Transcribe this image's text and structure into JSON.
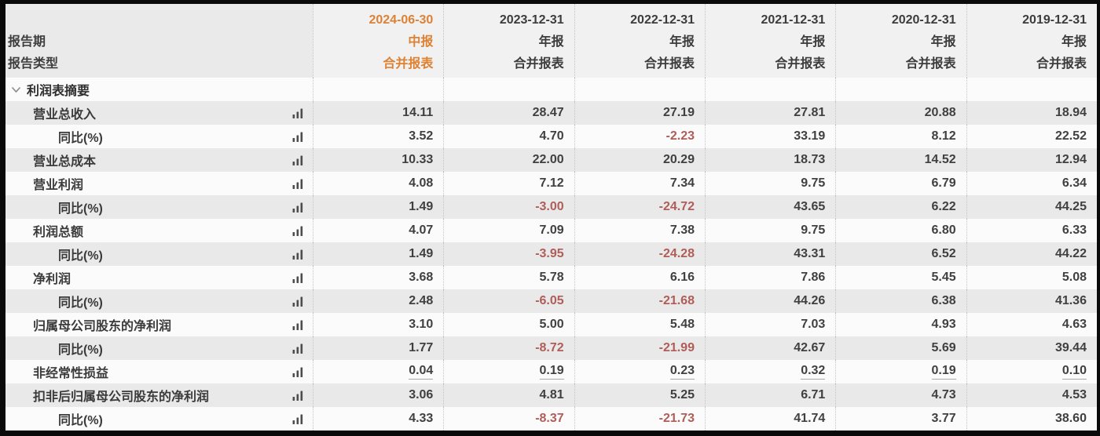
{
  "header": {
    "period_row_label": "报告期",
    "type_row_label": "报告类型",
    "columns": [
      {
        "date": "2024-06-30",
        "period": "中报",
        "type": "合并报表",
        "highlight": true
      },
      {
        "date": "2023-12-31",
        "period": "年报",
        "type": "合并报表",
        "highlight": false
      },
      {
        "date": "2022-12-31",
        "period": "年报",
        "type": "合并报表",
        "highlight": false
      },
      {
        "date": "2021-12-31",
        "period": "年报",
        "type": "合并报表",
        "highlight": false
      },
      {
        "date": "2020-12-31",
        "period": "年报",
        "type": "合并报表",
        "highlight": false
      },
      {
        "date": "2019-12-31",
        "period": "年报",
        "type": "合并报表",
        "highlight": false
      }
    ]
  },
  "section": {
    "title": "利润表摘要",
    "state": "expanded"
  },
  "rows": [
    {
      "label": "营业总收入",
      "indent": 1,
      "underline": false,
      "values": [
        "14.11",
        "28.47",
        "27.19",
        "27.81",
        "20.88",
        "18.94"
      ]
    },
    {
      "label": "同比(%)",
      "indent": 2,
      "underline": false,
      "values": [
        "3.52",
        "4.70",
        "-2.23",
        "33.19",
        "8.12",
        "22.52"
      ]
    },
    {
      "label": "营业总成本",
      "indent": 1,
      "underline": false,
      "values": [
        "10.33",
        "22.00",
        "20.29",
        "18.73",
        "14.52",
        "12.94"
      ]
    },
    {
      "label": "营业利润",
      "indent": 1,
      "underline": false,
      "values": [
        "4.08",
        "7.12",
        "7.34",
        "9.75",
        "6.79",
        "6.34"
      ]
    },
    {
      "label": "同比(%)",
      "indent": 2,
      "underline": false,
      "values": [
        "1.49",
        "-3.00",
        "-24.72",
        "43.65",
        "6.22",
        "44.25"
      ]
    },
    {
      "label": "利润总额",
      "indent": 1,
      "underline": false,
      "values": [
        "4.07",
        "7.09",
        "7.38",
        "9.75",
        "6.80",
        "6.33"
      ]
    },
    {
      "label": "同比(%)",
      "indent": 2,
      "underline": false,
      "values": [
        "1.49",
        "-3.95",
        "-24.28",
        "43.31",
        "6.52",
        "44.22"
      ]
    },
    {
      "label": "净利润",
      "indent": 1,
      "underline": false,
      "values": [
        "3.68",
        "5.78",
        "6.16",
        "7.86",
        "5.45",
        "5.08"
      ]
    },
    {
      "label": "同比(%)",
      "indent": 2,
      "underline": false,
      "values": [
        "2.48",
        "-6.05",
        "-21.68",
        "44.26",
        "6.38",
        "41.36"
      ]
    },
    {
      "label": "归属母公司股东的净利润",
      "indent": 1,
      "underline": false,
      "values": [
        "3.10",
        "5.00",
        "5.48",
        "7.03",
        "4.93",
        "4.63"
      ]
    },
    {
      "label": "同比(%)",
      "indent": 2,
      "underline": false,
      "values": [
        "1.77",
        "-8.72",
        "-21.99",
        "42.67",
        "5.69",
        "39.44"
      ]
    },
    {
      "label": "非经常性损益",
      "indent": 1,
      "underline": true,
      "values": [
        "0.04",
        "0.19",
        "0.23",
        "0.32",
        "0.19",
        "0.10"
      ]
    },
    {
      "label": "扣非后归属母公司股东的净利润",
      "indent": 1,
      "underline": false,
      "values": [
        "3.06",
        "4.81",
        "5.25",
        "6.71",
        "4.73",
        "4.53"
      ]
    },
    {
      "label": "同比(%)",
      "indent": 2,
      "underline": false,
      "values": [
        "4.33",
        "-8.37",
        "-21.73",
        "41.74",
        "3.77",
        "38.60"
      ]
    }
  ],
  "icons": {
    "row_metric_icon": "bar-chart",
    "section_icon": "chevron-down"
  },
  "colors": {
    "accent_orange": "#dd8234",
    "negative_red": "#b05d58",
    "stripe_gray": "#e9e9e9",
    "stripe_light": "#fbfbfb",
    "text_dark": "#3c3c3c"
  }
}
